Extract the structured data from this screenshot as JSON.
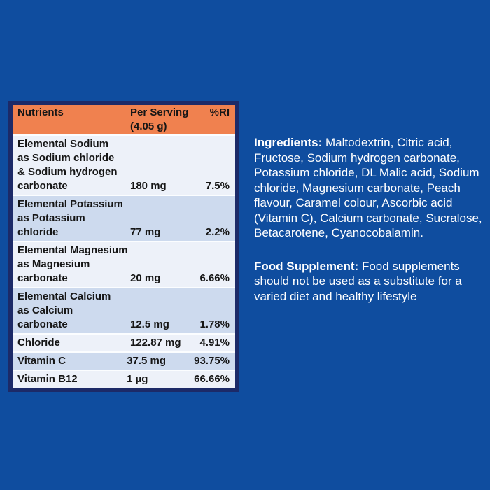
{
  "page": {
    "background_color": "#0F4D9F"
  },
  "table": {
    "border_color": "#1C2A68",
    "header_color": "#F0814F",
    "row_color_light": "#EDF1F9",
    "row_color_dark": "#CDDAEE",
    "header": {
      "nutrients_label": "Nutrients",
      "per_serving_label": "Per Serving\n(4.05 g)",
      "ri_label": "%RI"
    },
    "rows": [
      {
        "name": "Elemental Sodium\nas Sodium chloride\n& Sodium hydrogen\ncarbonate",
        "amount": "180 mg",
        "ri": "7.5%"
      },
      {
        "name": "Elemental Potassium\nas Potassium\nchloride",
        "amount": "77 mg",
        "ri": "2.2%"
      },
      {
        "name": "Elemental Magnesium\nas Magnesium\ncarbonate",
        "amount": "20 mg",
        "ri": "6.66%"
      },
      {
        "name": "Elemental Calcium\nas Calcium\ncarbonate",
        "amount": "12.5 mg",
        "ri": "1.78%"
      },
      {
        "name": "Chloride",
        "amount": "122.87 mg",
        "ri": "4.91%"
      },
      {
        "name": "Vitamin C",
        "amount": "37.5 mg",
        "ri": "93.75%"
      },
      {
        "name": "Vitamin B12",
        "amount": "1 µg",
        "ri": "66.66%"
      }
    ]
  },
  "info": {
    "ingredients": {
      "lead": "Ingredients:",
      "body": " Maltodextrin, Citric acid,\nFructose, Sodium hydrogen carbonate,\nPotassium chloride, DL Malic acid, Sodium\nchloride, Magnesium carbonate, Peach\nflavour, Caramel colour, Ascorbic acid\n(Vitamin C), Calcium carbonate, Sucralose,\nBetacarotene, Cyanocobalamin."
    },
    "supplement": {
      "lead": "Food Supplement:",
      "body": " Food supplements\nshould not be used as a substitute for a\nvaried diet and healthy lifestyle"
    }
  }
}
